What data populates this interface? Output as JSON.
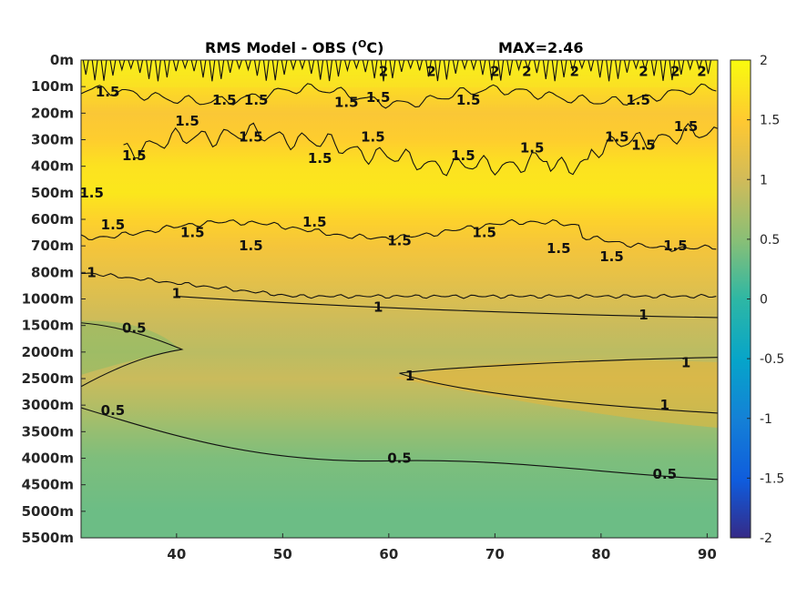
{
  "chart_data": {
    "type": "heatmap",
    "title": "RMS Model - OBS (",
    "title_superscript": "O",
    "title_unit": "C)",
    "max_label": "MAX=2.46",
    "xlabel": "",
    "ylabel": "",
    "x_ticks": [
      40,
      50,
      60,
      70,
      80,
      90
    ],
    "xlim": [
      31,
      91
    ],
    "depth_ticks": [
      "0m",
      "100m",
      "200m",
      "300m",
      "400m",
      "500m",
      "600m",
      "700m",
      "800m",
      "1000m",
      "1500m",
      "2000m",
      "2500m",
      "3000m",
      "3500m",
      "4000m",
      "4500m",
      "5000m",
      "5500m"
    ],
    "colorbar": {
      "ticks": [
        "2",
        "1.5",
        "1",
        "0.5",
        "0",
        "-0.5",
        "-1",
        "-1.5",
        "-2"
      ],
      "range": [
        -2,
        2
      ],
      "colormap": "parula"
    },
    "depth_profile": [
      {
        "depth": "0m",
        "value": 1.9
      },
      {
        "depth": "100m",
        "value": 1.7
      },
      {
        "depth": "200m",
        "value": 1.45
      },
      {
        "depth": "300m",
        "value": 1.55
      },
      {
        "depth": "400m",
        "value": 1.75
      },
      {
        "depth": "500m",
        "value": 1.8
      },
      {
        "depth": "600m",
        "value": 1.6
      },
      {
        "depth": "700m",
        "value": 1.4
      },
      {
        "depth": "800m",
        "value": 1.25
      },
      {
        "depth": "1000m",
        "value": 1.1
      },
      {
        "depth": "1500m",
        "value": 0.95
      },
      {
        "depth": "2000m",
        "value": 0.85
      },
      {
        "depth": "2500m",
        "value": 0.95
      },
      {
        "depth": "3000m",
        "value": 0.8
      },
      {
        "depth": "3500m",
        "value": 0.6
      },
      {
        "depth": "4000m",
        "value": 0.45
      },
      {
        "depth": "4500m",
        "value": 0.4
      },
      {
        "depth": "5000m",
        "value": 0.35
      },
      {
        "depth": "5500m",
        "value": 0.35
      }
    ],
    "contour_labels": [
      {
        "text": "1.5",
        "x": 33.5,
        "depth_index": 1.2
      },
      {
        "text": "1.5",
        "x": 44.5,
        "depth_index": 1.5
      },
      {
        "text": "1.5",
        "x": 47.5,
        "depth_index": 1.5
      },
      {
        "text": "1.5",
        "x": 41,
        "depth_index": 2.3
      },
      {
        "text": "1.5",
        "x": 56,
        "depth_index": 1.6
      },
      {
        "text": "1.5",
        "x": 59,
        "depth_index": 1.4
      },
      {
        "text": "1.5",
        "x": 67.5,
        "depth_index": 1.5
      },
      {
        "text": "1.5",
        "x": 83.5,
        "depth_index": 1.5
      },
      {
        "text": "1.5",
        "x": 36,
        "depth_index": 3.6
      },
      {
        "text": "1.5",
        "x": 47,
        "depth_index": 2.9
      },
      {
        "text": "1.5",
        "x": 53.5,
        "depth_index": 3.7
      },
      {
        "text": "1.5",
        "x": 58.5,
        "depth_index": 2.9
      },
      {
        "text": "1.5",
        "x": 67,
        "depth_index": 3.6
      },
      {
        "text": "1.5",
        "x": 73.5,
        "depth_index": 3.3
      },
      {
        "text": "1.5",
        "x": 81.5,
        "depth_index": 2.9
      },
      {
        "text": "1.5",
        "x": 84,
        "depth_index": 3.2
      },
      {
        "text": "1.5",
        "x": 88,
        "depth_index": 2.5
      },
      {
        "text": "1.5",
        "x": 32,
        "depth_index": 5.0
      },
      {
        "text": "1.5",
        "x": 34,
        "depth_index": 6.2
      },
      {
        "text": "1.5",
        "x": 41.5,
        "depth_index": 6.5
      },
      {
        "text": "1.5",
        "x": 47,
        "depth_index": 7.0
      },
      {
        "text": "1.5",
        "x": 53,
        "depth_index": 6.1
      },
      {
        "text": "1.5",
        "x": 61,
        "depth_index": 6.8
      },
      {
        "text": "1.5",
        "x": 69,
        "depth_index": 6.5
      },
      {
        "text": "1.5",
        "x": 76,
        "depth_index": 7.1
      },
      {
        "text": "1.5",
        "x": 81,
        "depth_index": 7.4
      },
      {
        "text": "1.5",
        "x": 87,
        "depth_index": 7.0
      },
      {
        "text": "1",
        "x": 32,
        "depth_index": 8.0
      },
      {
        "text": "1",
        "x": 40,
        "depth_index": 8.8
      },
      {
        "text": "1",
        "x": 59,
        "depth_index": 9.3
      },
      {
        "text": "1",
        "x": 84,
        "depth_index": 9.6
      },
      {
        "text": "1",
        "x": 62,
        "depth_index": 11.9
      },
      {
        "text": "1",
        "x": 88,
        "depth_index": 11.4
      },
      {
        "text": "1",
        "x": 86,
        "depth_index": 13.0
      },
      {
        "text": "0.5",
        "x": 36,
        "depth_index": 10.1
      },
      {
        "text": "0.5",
        "x": 34,
        "depth_index": 13.2
      },
      {
        "text": "0.5",
        "x": 61,
        "depth_index": 15.0
      },
      {
        "text": "0.5",
        "x": 86,
        "depth_index": 15.6
      }
    ],
    "surface_labels": [
      {
        "text": "2",
        "x": 59.5
      },
      {
        "text": "2",
        "x": 64
      },
      {
        "text": "2",
        "x": 70
      },
      {
        "text": "2",
        "x": 73
      },
      {
        "text": "2",
        "x": 77.5
      },
      {
        "text": "2",
        "x": 84
      },
      {
        "text": "2",
        "x": 87
      },
      {
        "text": "2",
        "x": 89.5
      }
    ]
  }
}
